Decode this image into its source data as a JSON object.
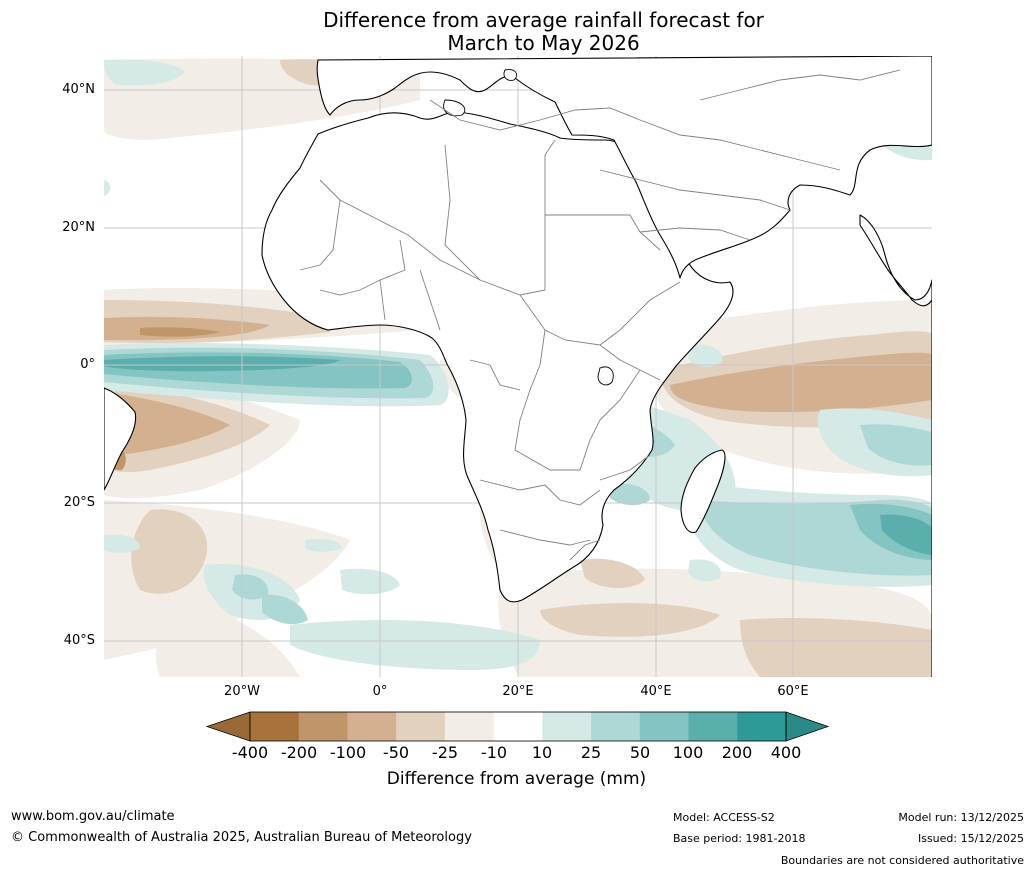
{
  "title": {
    "line1": "Difference from average rainfall forecast for",
    "line2": "March to May 2026"
  },
  "map": {
    "lat_labels": [
      "40°N",
      "20°N",
      "0°",
      "20°S",
      "40°S"
    ],
    "lon_labels": [
      "20°W",
      "0°",
      "20°E",
      "40°E",
      "60°E"
    ]
  },
  "legend": {
    "ticks": [
      "-400",
      "-200",
      "-100",
      "-50",
      "-25",
      "-10",
      "10",
      "25",
      "50",
      "100",
      "200",
      "400"
    ],
    "colors": [
      "#a8723c",
      "#c1956a",
      "#d3b08f",
      "#e3d1bf",
      "#f2ede6",
      "#ffffff",
      "#d5e9e7",
      "#aed8d5",
      "#84c4c2",
      "#5aaeab",
      "#2e9a97"
    ],
    "low_arrow_color": "#9a6a36",
    "high_arrow_color": "#2a8a88",
    "title": "Difference from average (mm)"
  },
  "footer": {
    "website": "www.bom.gov.au/climate",
    "copyright": "© Commonwealth of Australia 2025, Australian Bureau of Meteorology",
    "model": "Model: ACCESS-S2",
    "base_period": "Base period: 1981-2018",
    "model_run": "Model run: 13/12/2025",
    "issued": "Issued: 15/12/2025",
    "disclaimer": "Boundaries are not considered authoritative"
  }
}
